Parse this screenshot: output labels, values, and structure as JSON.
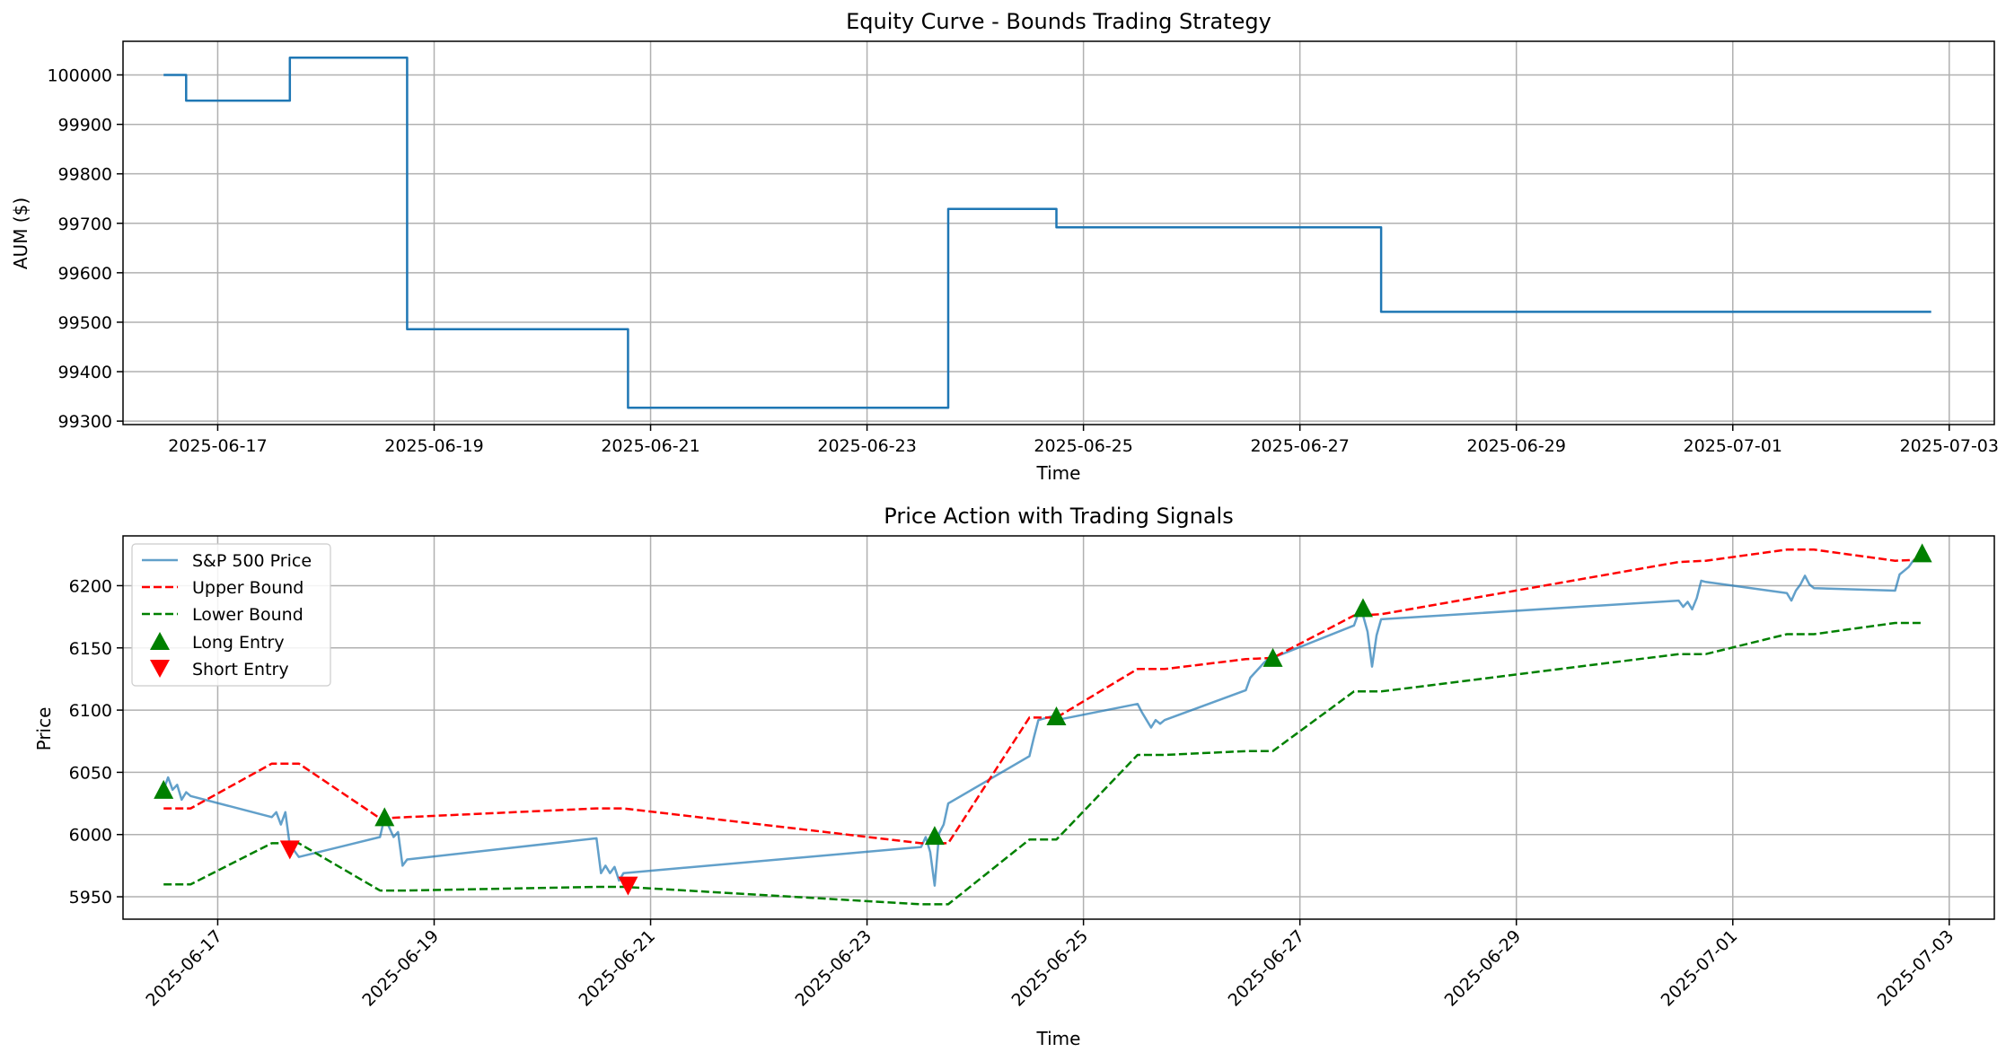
{
  "charts": [
    {
      "title": "Equity Curve - Bounds Trading Strategy",
      "xlabel": "Time",
      "ylabel": "AUM ($)",
      "yticks": [
        99300,
        99400,
        99500,
        99600,
        99700,
        99800,
        99900,
        100000
      ],
      "xticks": [
        "2025-06-17",
        "2025-06-19",
        "2025-06-21",
        "2025-06-23",
        "2025-06-25",
        "2025-06-27",
        "2025-06-29",
        "2025-07-01",
        "2025-07-03"
      ]
    },
    {
      "title": "Price Action with Trading Signals",
      "xlabel": "Time",
      "ylabel": "Price",
      "yticks": [
        5950,
        6000,
        6050,
        6100,
        6150,
        6200
      ],
      "xticks": [
        "2025-06-17",
        "2025-06-19",
        "2025-06-21",
        "2025-06-23",
        "2025-06-25",
        "2025-06-27",
        "2025-06-29",
        "2025-07-01",
        "2025-07-03"
      ],
      "legend": [
        "S&P 500 Price",
        "Upper Bound",
        "Lower Bound",
        "Long Entry",
        "Short Entry"
      ]
    }
  ],
  "colors": {
    "equity": "#1f77b4",
    "price": "#1f77b4",
    "upper": "#ff0000",
    "lower": "#008000",
    "long": "#008000",
    "short": "#ff0000",
    "grid": "#b0b0b0"
  },
  "chart_data": [
    {
      "type": "line",
      "title": "Equity Curve - Bounds Trading Strategy",
      "xlabel": "Time",
      "ylabel": "AUM ($)",
      "xlim": [
        "2025-06-16 03:00",
        "2025-07-03 10:00"
      ],
      "ylim": [
        99293,
        100068
      ],
      "grid": true,
      "series": [
        {
          "kind": "step",
          "points": [
            [
              "2025-06-16 12:00",
              100000
            ],
            [
              "2025-06-16 17:00",
              100000
            ],
            [
              "2025-06-16 17:00",
              99948
            ],
            [
              "2025-06-17 16:00",
              99948
            ],
            [
              "2025-06-17 16:00",
              100035
            ],
            [
              "2025-06-18 18:00",
              100035
            ],
            [
              "2025-06-18 18:00",
              99486
            ],
            [
              "2025-06-20 19:00",
              99486
            ],
            [
              "2025-06-20 19:00",
              99327
            ],
            [
              "2025-06-23 18:00",
              99327
            ],
            [
              "2025-06-23 18:00",
              99729
            ],
            [
              "2025-06-24 18:00",
              99729
            ],
            [
              "2025-06-24 18:00",
              99692
            ],
            [
              "2025-06-27 18:00",
              99692
            ],
            [
              "2025-06-27 18:00",
              99521
            ],
            [
              "2025-07-02 20:00",
              99521
            ]
          ]
        }
      ]
    },
    {
      "type": "line",
      "title": "Price Action with Trading Signals",
      "xlabel": "Time",
      "ylabel": "Price",
      "xlim": [
        "2025-06-16 03:00",
        "2025-07-03 10:00"
      ],
      "ylim": [
        5932,
        6240
      ],
      "grid": true,
      "legend_position": "top-left",
      "series": [
        {
          "name": "S&P 500 Price",
          "kind": "line",
          "points": [
            [
              "2025-06-16 12:00",
              6036
            ],
            [
              "2025-06-16 13:00",
              6046
            ],
            [
              "2025-06-16 14:00",
              6036
            ],
            [
              "2025-06-16 15:00",
              6040
            ],
            [
              "2025-06-16 16:00",
              6028
            ],
            [
              "2025-06-16 17:00",
              6034
            ],
            [
              "2025-06-16 18:00",
              6031
            ],
            [
              "2025-06-17 12:00",
              6014
            ],
            [
              "2025-06-17 13:00",
              6018
            ],
            [
              "2025-06-17 14:00",
              6008
            ],
            [
              "2025-06-17 15:00",
              6018
            ],
            [
              "2025-06-17 16:00",
              5991
            ],
            [
              "2025-06-17 17:00",
              5987
            ],
            [
              "2025-06-17 18:00",
              5982
            ],
            [
              "2025-06-18 12:00",
              5998
            ],
            [
              "2025-06-18 13:00",
              6014
            ],
            [
              "2025-06-18 14:00",
              6006
            ],
            [
              "2025-06-18 15:00",
              5998
            ],
            [
              "2025-06-18 16:00",
              6002
            ],
            [
              "2025-06-18 17:00",
              5975
            ],
            [
              "2025-06-18 18:00",
              5980
            ],
            [
              "2025-06-20 12:00",
              5997
            ],
            [
              "2025-06-20 13:00",
              5969
            ],
            [
              "2025-06-20 14:00",
              5975
            ],
            [
              "2025-06-20 15:00",
              5969
            ],
            [
              "2025-06-20 16:00",
              5974
            ],
            [
              "2025-06-20 17:00",
              5963
            ],
            [
              "2025-06-20 18:00",
              5969
            ],
            [
              "2025-06-23 12:00",
              5990
            ],
            [
              "2025-06-23 13:00",
              5998
            ],
            [
              "2025-06-23 14:00",
              5986
            ],
            [
              "2025-06-23 15:00",
              5959
            ],
            [
              "2025-06-23 16:00",
              6001
            ],
            [
              "2025-06-23 17:00",
              6008
            ],
            [
              "2025-06-23 18:00",
              6025
            ],
            [
              "2025-06-24 12:00",
              6063
            ],
            [
              "2025-06-24 13:00",
              6078
            ],
            [
              "2025-06-24 14:00",
              6092
            ],
            [
              "2025-06-24 15:00",
              6093
            ],
            [
              "2025-06-24 16:00",
              6094
            ],
            [
              "2025-06-24 17:00",
              6095
            ],
            [
              "2025-06-24 18:00",
              6092
            ],
            [
              "2025-06-25 12:00",
              6105
            ],
            [
              "2025-06-25 13:00",
              6098
            ],
            [
              "2025-06-25 14:00",
              6092
            ],
            [
              "2025-06-25 15:00",
              6086
            ],
            [
              "2025-06-25 16:00",
              6092
            ],
            [
              "2025-06-25 17:00",
              6089
            ],
            [
              "2025-06-25 18:00",
              6092
            ],
            [
              "2025-06-26 12:00",
              6116
            ],
            [
              "2025-06-26 13:00",
              6126
            ],
            [
              "2025-06-26 14:00",
              6130
            ],
            [
              "2025-06-26 15:00",
              6134
            ],
            [
              "2025-06-26 16:00",
              6138
            ],
            [
              "2025-06-26 17:00",
              6141
            ],
            [
              "2025-06-26 18:00",
              6142
            ],
            [
              "2025-06-27 12:00",
              6168
            ],
            [
              "2025-06-27 13:00",
              6178
            ],
            [
              "2025-06-27 14:00",
              6176
            ],
            [
              "2025-06-27 15:00",
              6163
            ],
            [
              "2025-06-27 16:00",
              6135
            ],
            [
              "2025-06-27 17:00",
              6160
            ],
            [
              "2025-06-27 18:00",
              6173
            ],
            [
              "2025-06-30 12:00",
              6188
            ],
            [
              "2025-06-30 13:00",
              6183
            ],
            [
              "2025-06-30 14:00",
              6187
            ],
            [
              "2025-06-30 15:00",
              6181
            ],
            [
              "2025-06-30 16:00",
              6190
            ],
            [
              "2025-06-30 17:00",
              6204
            ],
            [
              "2025-06-30 18:00",
              6203
            ],
            [
              "2025-07-01 12:00",
              6194
            ],
            [
              "2025-07-01 13:00",
              6188
            ],
            [
              "2025-07-01 14:00",
              6196
            ],
            [
              "2025-07-01 15:00",
              6201
            ],
            [
              "2025-07-01 16:00",
              6208
            ],
            [
              "2025-07-01 17:00",
              6201
            ],
            [
              "2025-07-01 18:00",
              6198
            ],
            [
              "2025-07-02 12:00",
              6196
            ],
            [
              "2025-07-02 13:00",
              6209
            ],
            [
              "2025-07-02 14:00",
              6212
            ],
            [
              "2025-07-02 15:00",
              6215
            ],
            [
              "2025-07-02 16:00",
              6220
            ],
            [
              "2025-07-02 17:00",
              6222
            ],
            [
              "2025-07-02 18:00",
              6225
            ]
          ]
        },
        {
          "name": "Upper Bound",
          "kind": "dashed",
          "points": [
            [
              "2025-06-16 12:00",
              6021
            ],
            [
              "2025-06-16 18:00",
              6021
            ],
            [
              "2025-06-17 12:00",
              6057
            ],
            [
              "2025-06-17 18:00",
              6057
            ],
            [
              "2025-06-18 12:00",
              6013
            ],
            [
              "2025-06-18 18:00",
              6014
            ],
            [
              "2025-06-20 12:00",
              6021
            ],
            [
              "2025-06-20 18:00",
              6021
            ],
            [
              "2025-06-23 12:00",
              5993
            ],
            [
              "2025-06-23 18:00",
              5993
            ],
            [
              "2025-06-24 12:00",
              6094
            ],
            [
              "2025-06-24 18:00",
              6094
            ],
            [
              "2025-06-25 12:00",
              6133
            ],
            [
              "2025-06-25 18:00",
              6133
            ],
            [
              "2025-06-26 12:00",
              6141
            ],
            [
              "2025-06-26 18:00",
              6142
            ],
            [
              "2025-06-27 12:00",
              6176
            ],
            [
              "2025-06-27 18:00",
              6177
            ],
            [
              "2025-06-30 12:00",
              6219
            ],
            [
              "2025-06-30 18:00",
              6220
            ],
            [
              "2025-07-01 12:00",
              6229
            ],
            [
              "2025-07-01 18:00",
              6229
            ],
            [
              "2025-07-02 12:00",
              6220
            ],
            [
              "2025-07-02 18:00",
              6221
            ]
          ]
        },
        {
          "name": "Lower Bound",
          "kind": "dashed",
          "points": [
            [
              "2025-06-16 12:00",
              5960
            ],
            [
              "2025-06-16 18:00",
              5960
            ],
            [
              "2025-06-17 12:00",
              5993
            ],
            [
              "2025-06-17 18:00",
              5993
            ],
            [
              "2025-06-18 12:00",
              5955
            ],
            [
              "2025-06-18 18:00",
              5955
            ],
            [
              "2025-06-20 12:00",
              5958
            ],
            [
              "2025-06-20 18:00",
              5958
            ],
            [
              "2025-06-23 12:00",
              5944
            ],
            [
              "2025-06-23 18:00",
              5944
            ],
            [
              "2025-06-24 12:00",
              5996
            ],
            [
              "2025-06-24 18:00",
              5996
            ],
            [
              "2025-06-25 12:00",
              6064
            ],
            [
              "2025-06-25 18:00",
              6064
            ],
            [
              "2025-06-26 12:00",
              6067
            ],
            [
              "2025-06-26 18:00",
              6067
            ],
            [
              "2025-06-27 12:00",
              6115
            ],
            [
              "2025-06-27 18:00",
              6115
            ],
            [
              "2025-06-30 12:00",
              6145
            ],
            [
              "2025-06-30 18:00",
              6145
            ],
            [
              "2025-07-01 12:00",
              6161
            ],
            [
              "2025-07-01 18:00",
              6161
            ],
            [
              "2025-07-02 12:00",
              6170
            ],
            [
              "2025-07-02 18:00",
              6170
            ]
          ]
        },
        {
          "name": "Long Entry",
          "kind": "marker-up",
          "points": [
            [
              "2025-06-16 12:00",
              6036
            ],
            [
              "2025-06-18 13:00",
              6014
            ],
            [
              "2025-06-23 15:00",
              5999
            ],
            [
              "2025-06-24 18:00",
              6095
            ],
            [
              "2025-06-26 18:00",
              6142
            ],
            [
              "2025-06-27 14:00",
              6182
            ],
            [
              "2025-07-02 18:00",
              6226
            ]
          ]
        },
        {
          "name": "Short Entry",
          "kind": "marker-down",
          "points": [
            [
              "2025-06-17 16:00",
              5988
            ],
            [
              "2025-06-20 19:00",
              5959
            ]
          ]
        }
      ]
    }
  ]
}
